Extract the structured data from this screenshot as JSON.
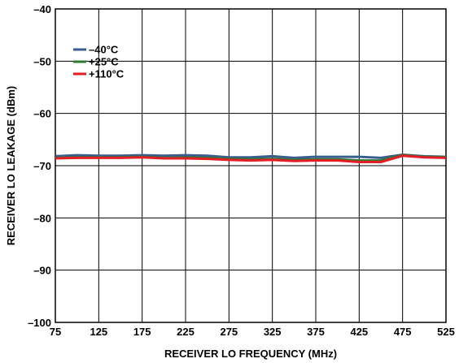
{
  "chart_data": {
    "type": "line",
    "xlabel": "RECEIVER LO FREQUENCY (MHz)",
    "ylabel": "RECEIVER LO LEAKAGE (dBm)",
    "xlim": [
      75,
      525
    ],
    "ylim": [
      -100,
      -40
    ],
    "x_ticks": [
      75,
      125,
      175,
      225,
      275,
      325,
      375,
      425,
      475,
      525
    ],
    "y_ticks": [
      -100,
      -90,
      -80,
      -70,
      -60,
      -50,
      -40
    ],
    "x_tick_labels": [
      "75",
      "125",
      "175",
      "225",
      "275",
      "325",
      "375",
      "425",
      "475",
      "525"
    ],
    "y_tick_labels": [
      "–100",
      "–90",
      "–80",
      "–70",
      "–60",
      "–50",
      "–40"
    ],
    "grid": true,
    "legend_position": "top-left",
    "x": [
      75,
      100,
      125,
      150,
      175,
      200,
      225,
      250,
      275,
      300,
      325,
      350,
      375,
      400,
      425,
      450,
      475,
      500,
      525
    ],
    "series": [
      {
        "name": "–40°C",
        "color": "#3a5d8f",
        "values": [
          -68.2,
          -68.0,
          -68.1,
          -68.1,
          -68.0,
          -68.1,
          -68.0,
          -68.1,
          -68.4,
          -68.4,
          -68.2,
          -68.5,
          -68.3,
          -68.3,
          -68.3,
          -68.5,
          -67.9,
          -68.2,
          -68.3
        ]
      },
      {
        "name": "+25°C",
        "color": "#2f7a2f",
        "values": [
          -68.5,
          -68.4,
          -68.4,
          -68.4,
          -68.3,
          -68.5,
          -68.4,
          -68.5,
          -68.7,
          -68.8,
          -68.7,
          -68.9,
          -68.8,
          -68.8,
          -69.0,
          -69.0,
          -68.0,
          -68.3,
          -68.4
        ]
      },
      {
        "name": "+110°C",
        "color": "#e41e26",
        "values": [
          -68.6,
          -68.5,
          -68.5,
          -68.5,
          -68.4,
          -68.6,
          -68.6,
          -68.7,
          -68.9,
          -69.0,
          -68.9,
          -69.1,
          -69.0,
          -69.0,
          -69.3,
          -69.3,
          -68.1,
          -68.4,
          -68.5
        ]
      }
    ]
  }
}
